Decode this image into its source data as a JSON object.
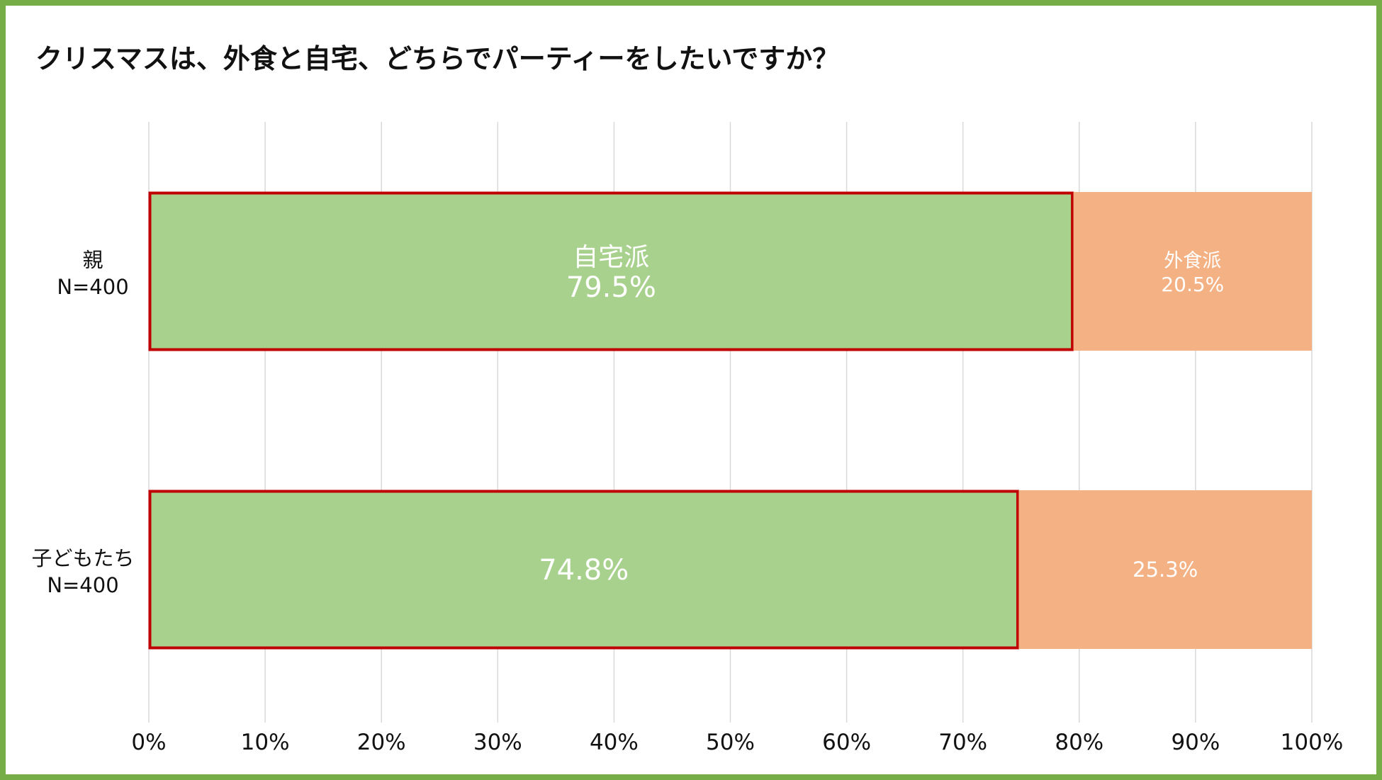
{
  "title": "クリスマスは、外食と自宅、どちらでパーティーをしたいですか？",
  "colors": {
    "frame": "#76ad47",
    "home": "#a9d18e",
    "eatout": "#f4b183",
    "highlight_border": "#c00000",
    "grid": "#d9d9d9"
  },
  "chart_data": {
    "type": "bar",
    "orientation": "horizontal",
    "stacked": "percent",
    "title": "クリスマスは、外食と自宅、どちらでパーティーをしたいですか？",
    "categories": [
      {
        "line1": "親",
        "line2": "N=400"
      },
      {
        "line1": "子どもたち",
        "line2": "N=400"
      }
    ],
    "series": [
      {
        "name": "自宅派",
        "values": [
          79.5,
          74.8
        ],
        "display": [
          "79.5%",
          "74.8%"
        ],
        "show_name_on_row": [
          true,
          false
        ]
      },
      {
        "name": "外食派",
        "values": [
          20.5,
          25.3
        ],
        "display": [
          "20.5%",
          "25.3%"
        ],
        "show_name_on_row": [
          true,
          false
        ]
      }
    ],
    "xlim": [
      0,
      100
    ],
    "xticks": [
      "0%",
      "10%",
      "20%",
      "30%",
      "40%",
      "50%",
      "60%",
      "70%",
      "80%",
      "90%",
      "100%"
    ],
    "grid": true,
    "legend": "none",
    "highlighted_series": "自宅派"
  }
}
